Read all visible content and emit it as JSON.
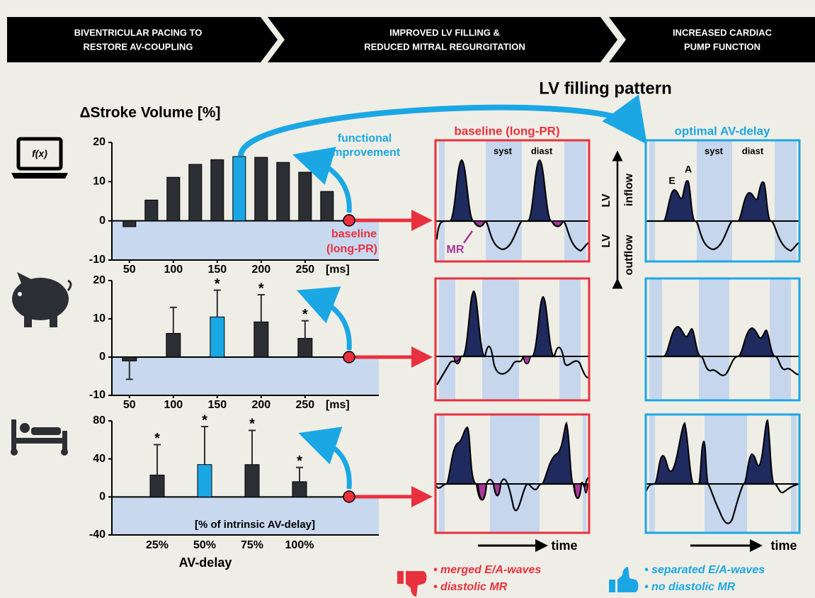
{
  "banners": [
    [
      "BIVENTRICULAR PACING  TO",
      "RESTORE AV-COUPLING"
    ],
    [
      "IMPROVED LV FILLING &",
      "REDUCED MITRAL REGURGITATION"
    ],
    [
      "INCREASED CARDIAC",
      "PUMP FUNCTION"
    ]
  ],
  "lv_title": "LV filling pattern",
  "y_title": "ΔStroke Volume [%]",
  "icon_label": "f(x)",
  "arrow_label": [
    "functional",
    "improvement"
  ],
  "baseline_label": [
    "baseline",
    "(long-PR)"
  ],
  "panel_titles": {
    "baseline": "baseline (long-PR)",
    "optimal": "optimal AV-delay"
  },
  "phase_labels": [
    "syst",
    "diast"
  ],
  "wave_labels": [
    "E",
    "A"
  ],
  "mr_label": "MR",
  "flow_labels": {
    "lv": "LV",
    "inflow": "inflow",
    "outflow": "outflow"
  },
  "time_label": "time",
  "bullets_bad": [
    "• merged E/A-waves",
    "• diastolic MR"
  ],
  "bullets_good": [
    "• separated E/A-waves",
    "• no diastolic MR"
  ],
  "chart_data": [
    {
      "type": "bar",
      "x": [
        50,
        75,
        100,
        125,
        150,
        175,
        200,
        225,
        250,
        275
      ],
      "values": [
        -1.5,
        5.3,
        11.1,
        14.4,
        15.6,
        16.4,
        16.2,
        14.9,
        12.4,
        7.5
      ],
      "colors": [
        "#2b2e33",
        "#2b2e33",
        "#2b2e33",
        "#2b2e33",
        "#2b2e33",
        "#1ba7e4",
        "#2b2e33",
        "#2b2e33",
        "#2b2e33",
        "#2b2e33"
      ],
      "xlim": [
        30,
        334
      ],
      "xticks": [
        50,
        100,
        150,
        200,
        250
      ],
      "x_unit": "[ms]",
      "ylim": [
        -10,
        20
      ],
      "yticks": [
        -10,
        0,
        10,
        20
      ]
    },
    {
      "type": "bar",
      "x": [
        50,
        100,
        150,
        200,
        250
      ],
      "values": [
        -1,
        6.2,
        10.5,
        9.2,
        4.9
      ],
      "errors": [
        4.8,
        6.8,
        7,
        7.1,
        4.6
      ],
      "colors": [
        "#2b2e33",
        "#2b2e33",
        "#1ba7e4",
        "#2b2e33",
        "#2b2e33"
      ],
      "stars": [
        {
          "x": 150,
          "label": "*"
        },
        {
          "x": 200,
          "label": "*"
        },
        {
          "x": 250,
          "label": "*"
        }
      ],
      "xlim": [
        30,
        334
      ],
      "xticks": [
        50,
        100,
        150,
        200,
        250
      ],
      "x_unit": "[ms]",
      "ylim": [
        -10,
        20
      ],
      "yticks": [
        -10,
        0,
        10,
        20
      ]
    },
    {
      "type": "bar",
      "categories": [
        "25%",
        "50%",
        "75%",
        "100%"
      ],
      "values": [
        23,
        34,
        34,
        16
      ],
      "errors": [
        32,
        40,
        36,
        15
      ],
      "colors": [
        "#2b2e33",
        "#1ba7e4",
        "#2b2e33",
        "#2b2e33"
      ],
      "stars": [
        {
          "category": "25%",
          "label": "*"
        },
        {
          "category": "50%",
          "label": "*"
        },
        {
          "category": "75%",
          "label": "*"
        },
        {
          "category": "100%",
          "label": "*"
        }
      ],
      "note": "[% of intrinsic AV-delay]",
      "xlabel": "AV-delay",
      "ylim": [
        -40,
        80
      ],
      "yticks": [
        -40,
        0,
        40,
        80
      ]
    }
  ]
}
